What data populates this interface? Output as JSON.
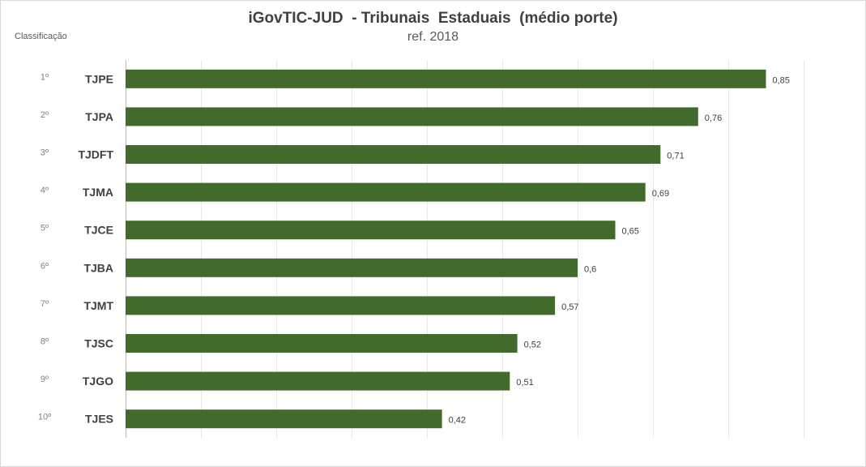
{
  "chart_data": {
    "type": "bar",
    "orientation": "horizontal",
    "title": "iGovTIC-JUD  - Tribunais  Estaduais  (médio porte)",
    "subtitle": "ref. 2018",
    "rank_header": "Classificação",
    "categories": [
      "TJPE",
      "TJPA",
      "TJDFT",
      "TJMA",
      "TJCE",
      "TJBA",
      "TJMT",
      "TJSC",
      "TJGO",
      "TJES"
    ],
    "ranks": [
      "1º",
      "2º",
      "3º",
      "4º",
      "5º",
      "6º",
      "7º",
      "8º",
      "9º",
      "10º"
    ],
    "values": [
      0.85,
      0.76,
      0.71,
      0.69,
      0.65,
      0.6,
      0.57,
      0.52,
      0.51,
      0.42
    ],
    "value_labels": [
      "0,85",
      "0,76",
      "0,71",
      "0,69",
      "0,65",
      "0,6",
      "0,57",
      "0,52",
      "0,51",
      "0,42"
    ],
    "xlim": [
      0,
      0.9
    ],
    "grid": true,
    "bar_color": "#426a2c",
    "grid_color": "#e8e8e8"
  }
}
